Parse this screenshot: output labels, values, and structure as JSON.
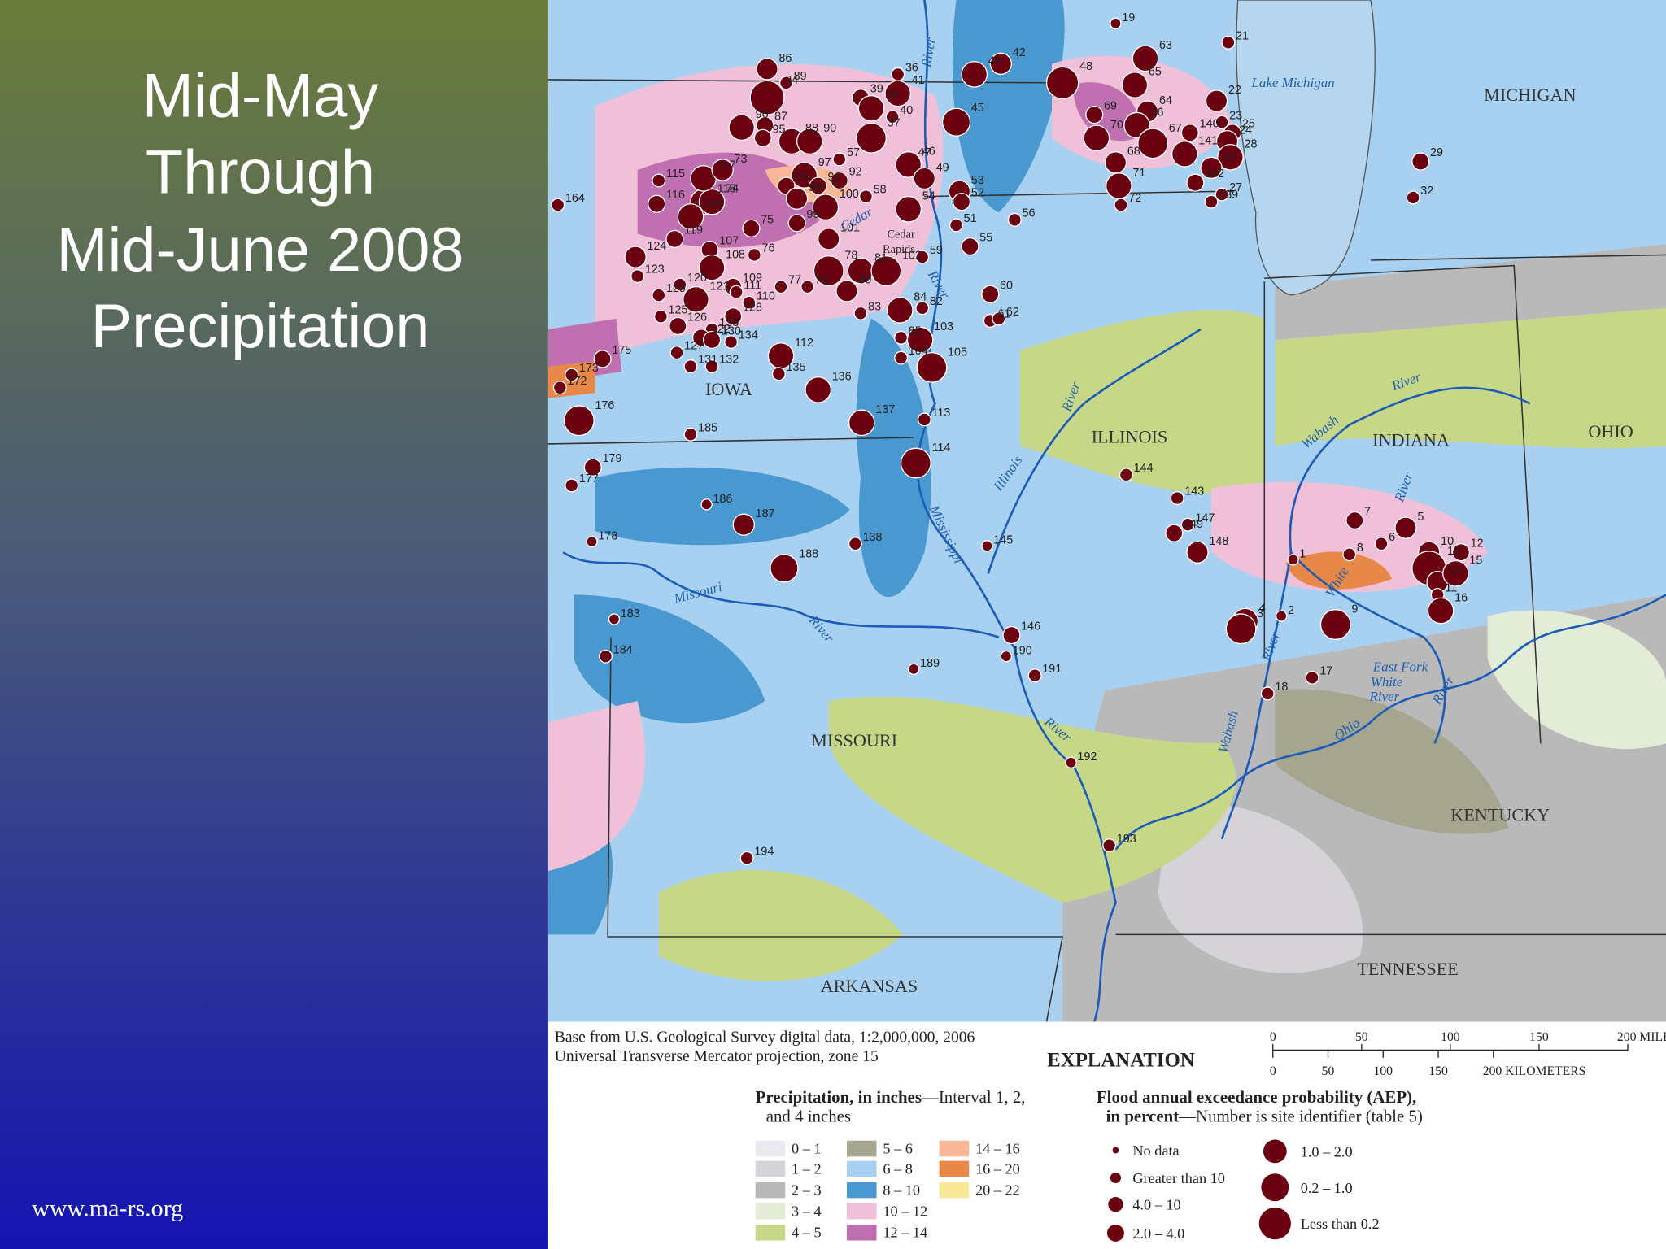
{
  "slide": {
    "title": [
      "Mid-May",
      "Through",
      "Mid-June 2008",
      "Precipitation"
    ],
    "footer": "www.ma-rs.org"
  },
  "map": {
    "states": [
      "IOWA",
      "ILLINOIS",
      "INDIANA",
      "OHIO",
      "MICHIGAN",
      "MISSOURI",
      "KENTUCKY",
      "TENNESSEE",
      "ARKANSAS"
    ],
    "water_labels": [
      "Lake Michigan",
      "River",
      "Cedar",
      "River",
      "River",
      "Illinois",
      "Mississippi",
      "Missouri",
      "River",
      "River",
      "Wabash",
      "River",
      "River",
      "White",
      "River",
      "Wabash",
      "East Fork",
      "White",
      "River",
      "Ohio",
      "River"
    ],
    "city_labels": [
      "Cedar",
      "Rapids"
    ],
    "sites": [
      86,
      89,
      94,
      96,
      87,
      95,
      88,
      90,
      39,
      38,
      36,
      41,
      40,
      37,
      57,
      47,
      45,
      44,
      42,
      48,
      65,
      63,
      21,
      19,
      64,
      66,
      69,
      70,
      140,
      22,
      23,
      25,
      24,
      68,
      67,
      141,
      28,
      20,
      71,
      142,
      27,
      139,
      72,
      29,
      32,
      46,
      97,
      93,
      91,
      92,
      58,
      49,
      53,
      52,
      54,
      100,
      98,
      118,
      74,
      117,
      73,
      115,
      116,
      164,
      106,
      99,
      75,
      101,
      119,
      107,
      124,
      108,
      76,
      78,
      81,
      102,
      59,
      56,
      55,
      51,
      109,
      77,
      79,
      80,
      84,
      82,
      60,
      61,
      62,
      111,
      110,
      123,
      129,
      120,
      121,
      125,
      128,
      126,
      133,
      122,
      130,
      134,
      127,
      112,
      85,
      103,
      83,
      131,
      132,
      105,
      104,
      175,
      173,
      172,
      135,
      136,
      176,
      185,
      137,
      113,
      114,
      177,
      179,
      144,
      143,
      147,
      149,
      148,
      186,
      187,
      178,
      138,
      188,
      145,
      7,
      5,
      6,
      10,
      12,
      8,
      13,
      14,
      15,
      11,
      9,
      16,
      1,
      4,
      2,
      3,
      183,
      184,
      146,
      189,
      190,
      191,
      17,
      18,
      192,
      193,
      194
    ]
  },
  "explanation": {
    "base_note": [
      "Base from U.S. Geological Survey digital data, 1:2,000,000, 2006",
      "Universal Transverse Mercator projection, zone 15"
    ],
    "title": "EXPLANATION",
    "precip_title": "Precipitation, in inches",
    "precip_note": [
      "—Interval 1, 2,",
      "and 4 inches"
    ],
    "precip_classes": [
      {
        "label": "0 – 1",
        "color": "#ece8f0"
      },
      {
        "label": "1 – 2",
        "color": "#d6d3d8"
      },
      {
        "label": "2 – 3",
        "color": "#b9b9b9"
      },
      {
        "label": "3 – 4",
        "color": "#e2ecd6"
      },
      {
        "label": "4 – 5",
        "color": "#c6d888"
      },
      {
        "label": "5 – 6",
        "color": "#a6a690"
      },
      {
        "label": "6 – 8",
        "color": "#a8d0f0"
      },
      {
        "label": "8 – 10",
        "color": "#4a98d0"
      },
      {
        "label": "10 – 12",
        "color": "#f0c0d8"
      },
      {
        "label": "12 – 14",
        "color": "#c070b0"
      },
      {
        "label": "14 – 16",
        "color": "#f8b898"
      },
      {
        "label": "16 – 20",
        "color": "#e88848"
      },
      {
        "label": "20 – 22",
        "color": "#f8e898"
      }
    ],
    "aep_title": [
      "Flood annual exceedance probability (AEP),",
      "in percent"
    ],
    "aep_note": "—Number is site identifier (table 5)",
    "aep_classes": [
      "No data",
      "Greater than 10",
      "4.0 – 10",
      "2.0 – 4.0",
      "1.0 – 2.0",
      "0.2 – 1.0",
      "Less than 0.2"
    ]
  },
  "scale": {
    "miles": [
      0,
      50,
      100,
      150,
      {
        "value": 200,
        "label": "200 MILES"
      }
    ],
    "km": [
      0,
      50,
      100,
      150,
      {
        "value": 200,
        "label": "200 KILOMETERS"
      }
    ]
  }
}
